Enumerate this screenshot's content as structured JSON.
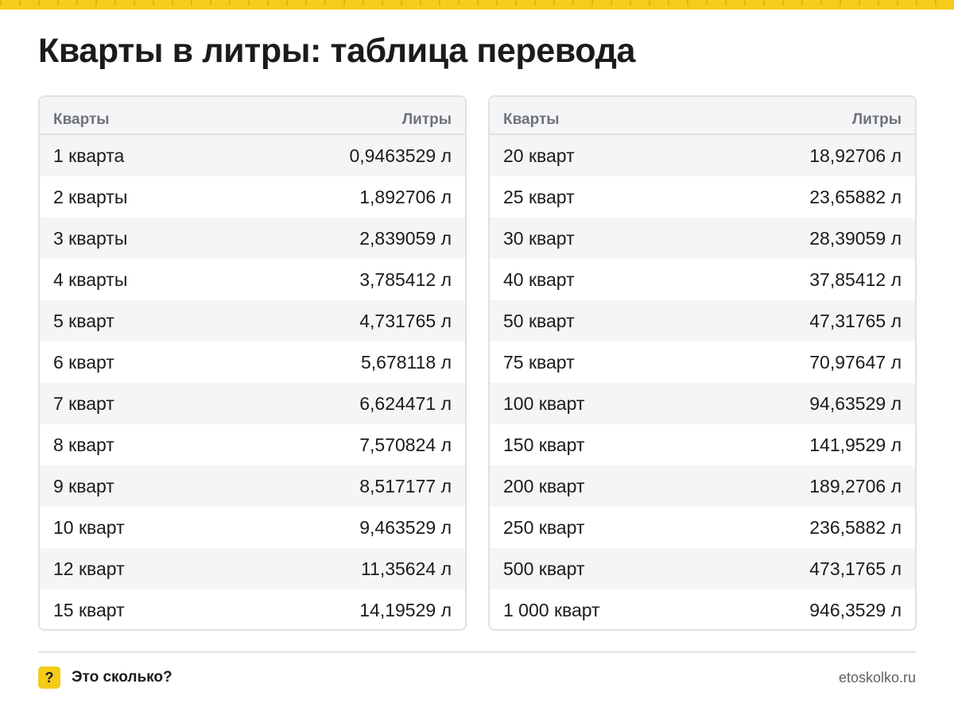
{
  "title": "Кварты в литры: таблица перевода",
  "tables": [
    {
      "headers": {
        "from": "Кварты",
        "to": "Литры"
      },
      "rows": [
        {
          "from": "1 кварта",
          "to": "0,9463529 л"
        },
        {
          "from": "2 кварты",
          "to": "1,892706 л"
        },
        {
          "from": "3 кварты",
          "to": "2,839059 л"
        },
        {
          "from": "4 кварты",
          "to": "3,785412 л"
        },
        {
          "from": "5 кварт",
          "to": "4,731765 л"
        },
        {
          "from": "6 кварт",
          "to": "5,678118 л"
        },
        {
          "from": "7 кварт",
          "to": "6,624471 л"
        },
        {
          "from": "8 кварт",
          "to": "7,570824 л"
        },
        {
          "from": "9 кварт",
          "to": "8,517177 л"
        },
        {
          "from": "10 кварт",
          "to": "9,463529 л"
        },
        {
          "from": "12 кварт",
          "to": "11,35624 л"
        },
        {
          "from": "15 кварт",
          "to": "14,19529 л"
        }
      ]
    },
    {
      "headers": {
        "from": "Кварты",
        "to": "Литры"
      },
      "rows": [
        {
          "from": "20 кварт",
          "to": "18,92706 л"
        },
        {
          "from": "25 кварт",
          "to": "23,65882 л"
        },
        {
          "from": "30 кварт",
          "to": "28,39059 л"
        },
        {
          "from": "40 кварт",
          "to": "37,85412 л"
        },
        {
          "from": "50 кварт",
          "to": "47,31765 л"
        },
        {
          "from": "75 кварт",
          "to": "70,97647 л"
        },
        {
          "from": "100 кварт",
          "to": "94,63529 л"
        },
        {
          "from": "150 кварт",
          "to": "141,9529 л"
        },
        {
          "from": "200 кварт",
          "to": "189,2706 л"
        },
        {
          "from": "250 кварт",
          "to": "236,5882 л"
        },
        {
          "from": "500 кварт",
          "to": "473,1765 л"
        },
        {
          "from": "1 000 кварт",
          "to": "946,3529 л"
        }
      ]
    }
  ],
  "footer": {
    "logo_glyph": "?",
    "brand": "Это сколько?",
    "site": "etoskolko.ru"
  },
  "colors": {
    "accent": "#f5cc19",
    "stripe": "#f4f5f7",
    "border": "#dfe1e4",
    "header_text": "#6f7378"
  }
}
